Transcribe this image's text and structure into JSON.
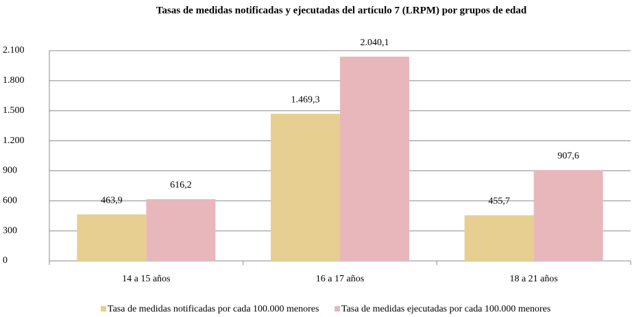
{
  "chart_data": {
    "type": "bar",
    "title": "Tasas de medidas notificadas y ejecutadas del artículo 7 (LRPM) por grupos de edad",
    "categories": [
      "14 a 15 años",
      "16 a 17 años",
      "18 a 21 años"
    ],
    "series": [
      {
        "name": "Tasa de medidas notificadas por cada 100.000 menores",
        "color": "#e6cf90",
        "values": [
          463.9,
          1469.3,
          455.7
        ],
        "value_labels": [
          "463,9",
          "1.469,3",
          "455,7"
        ]
      },
      {
        "name": "Tasa de medidas ejecutadas por cada 100.000 menores",
        "color": "#e7b7bb",
        "values": [
          616.2,
          2040.1,
          907.6
        ],
        "value_labels": [
          "616,2",
          "2.040,1",
          "907,6"
        ]
      }
    ],
    "ylim": [
      0,
      2100
    ],
    "yticks": [
      0,
      300,
      600,
      900,
      {
        "value": 1200,
        "label": "1.200"
      },
      {
        "value": 1500,
        "label": "1.500"
      },
      {
        "value": 1800,
        "label": "1.800"
      },
      {
        "value": 2100,
        "label": "2.100"
      }
    ],
    "grid": true,
    "legend": "bottom"
  }
}
